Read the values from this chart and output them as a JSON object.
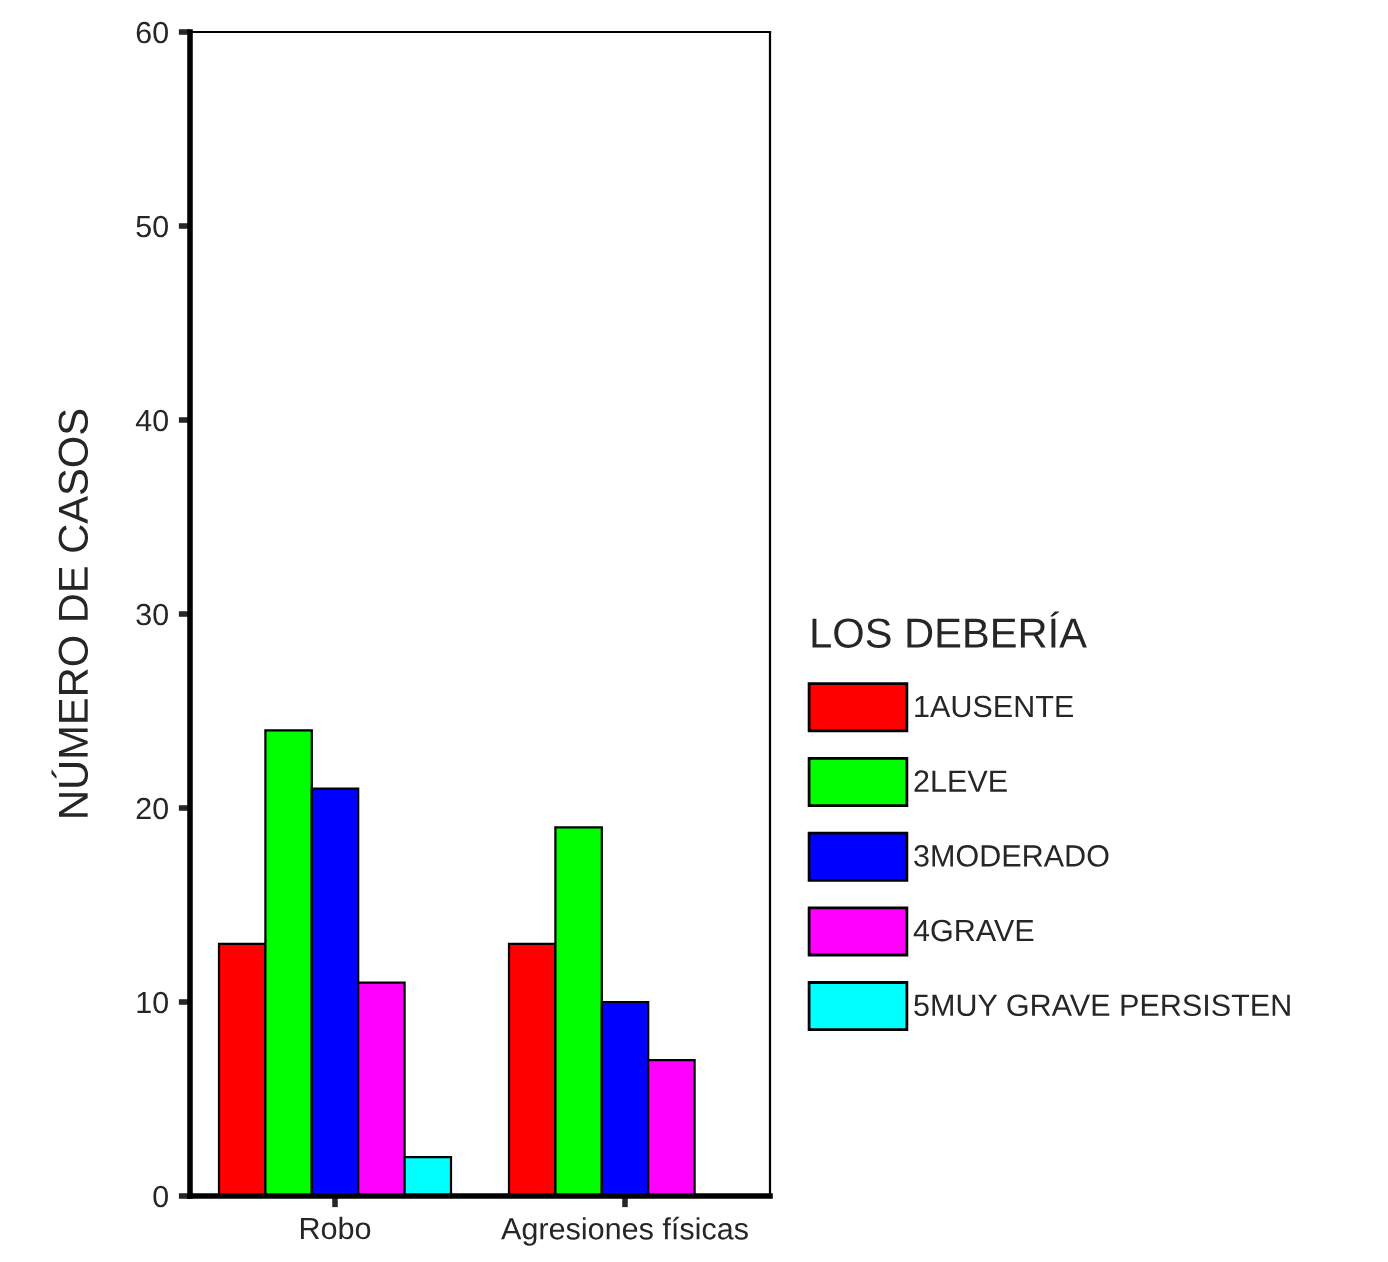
{
  "chart_data": {
    "type": "bar",
    "categories": [
      "Robo",
      "Agresiones físicas"
    ],
    "ylabel": "NÚMERO DE CASOS",
    "legend_title": "LOS DEBERÍA",
    "legend": "right",
    "grid": false,
    "ylim": [
      0,
      60
    ],
    "yticks": [
      0,
      10,
      20,
      30,
      40,
      50,
      60
    ],
    "series": [
      {
        "name": "1AUSENTE",
        "color": "#ff0000",
        "values": [
          13,
          13
        ]
      },
      {
        "name": "2LEVE",
        "color": "#00ff00",
        "values": [
          24,
          19
        ]
      },
      {
        "name": "3MODERADO",
        "color": "#0000ff",
        "values": [
          21,
          10
        ]
      },
      {
        "name": "4GRAVE",
        "color": "#ff00ff",
        "values": [
          11,
          7
        ]
      },
      {
        "name": "5MUY GRAVE PERSISTEN",
        "color": "#00ffff",
        "values": [
          2,
          null
        ]
      }
    ]
  }
}
